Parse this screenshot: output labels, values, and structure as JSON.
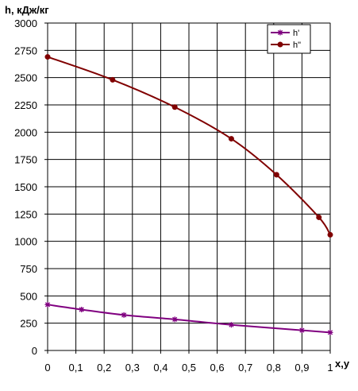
{
  "chart_data": {
    "type": "line",
    "title": "",
    "ylabel": "h, кДж/кг",
    "xlabel": "x,y",
    "xlim": [
      0,
      1
    ],
    "ylim": [
      0,
      3000
    ],
    "x_ticks": [
      0,
      0.1,
      0.2,
      0.3,
      0.4,
      0.5,
      0.6,
      0.7,
      0.8,
      0.9,
      1
    ],
    "x_tick_labels": [
      "0",
      "0,1",
      "0,2",
      "0,3",
      "0,4",
      "0,5",
      "0,6",
      "0,7",
      "0,8",
      "0,9",
      "1"
    ],
    "y_ticks": [
      0,
      250,
      500,
      750,
      1000,
      1250,
      1500,
      1750,
      2000,
      2250,
      2500,
      2750,
      3000
    ],
    "y_tick_labels": [
      "0",
      "250",
      "500",
      "750",
      "1000",
      "1250",
      "1500",
      "1750",
      "2000",
      "2250",
      "2500",
      "2750",
      "3000"
    ],
    "grid": true,
    "legend_position": "top-right",
    "series": [
      {
        "name": "h'",
        "color": "#800080",
        "marker": "star",
        "x": [
          0,
          0.12,
          0.27,
          0.45,
          0.65,
          0.9,
          1.0
        ],
        "y": [
          420,
          375,
          325,
          285,
          235,
          185,
          165
        ]
      },
      {
        "name": "h\"",
        "color": "#800000",
        "marker": "circle",
        "x": [
          0,
          0.23,
          0.45,
          0.65,
          0.81,
          0.96,
          1.0
        ],
        "y": [
          2690,
          2480,
          2230,
          1940,
          1610,
          1220,
          1060
        ]
      }
    ]
  }
}
